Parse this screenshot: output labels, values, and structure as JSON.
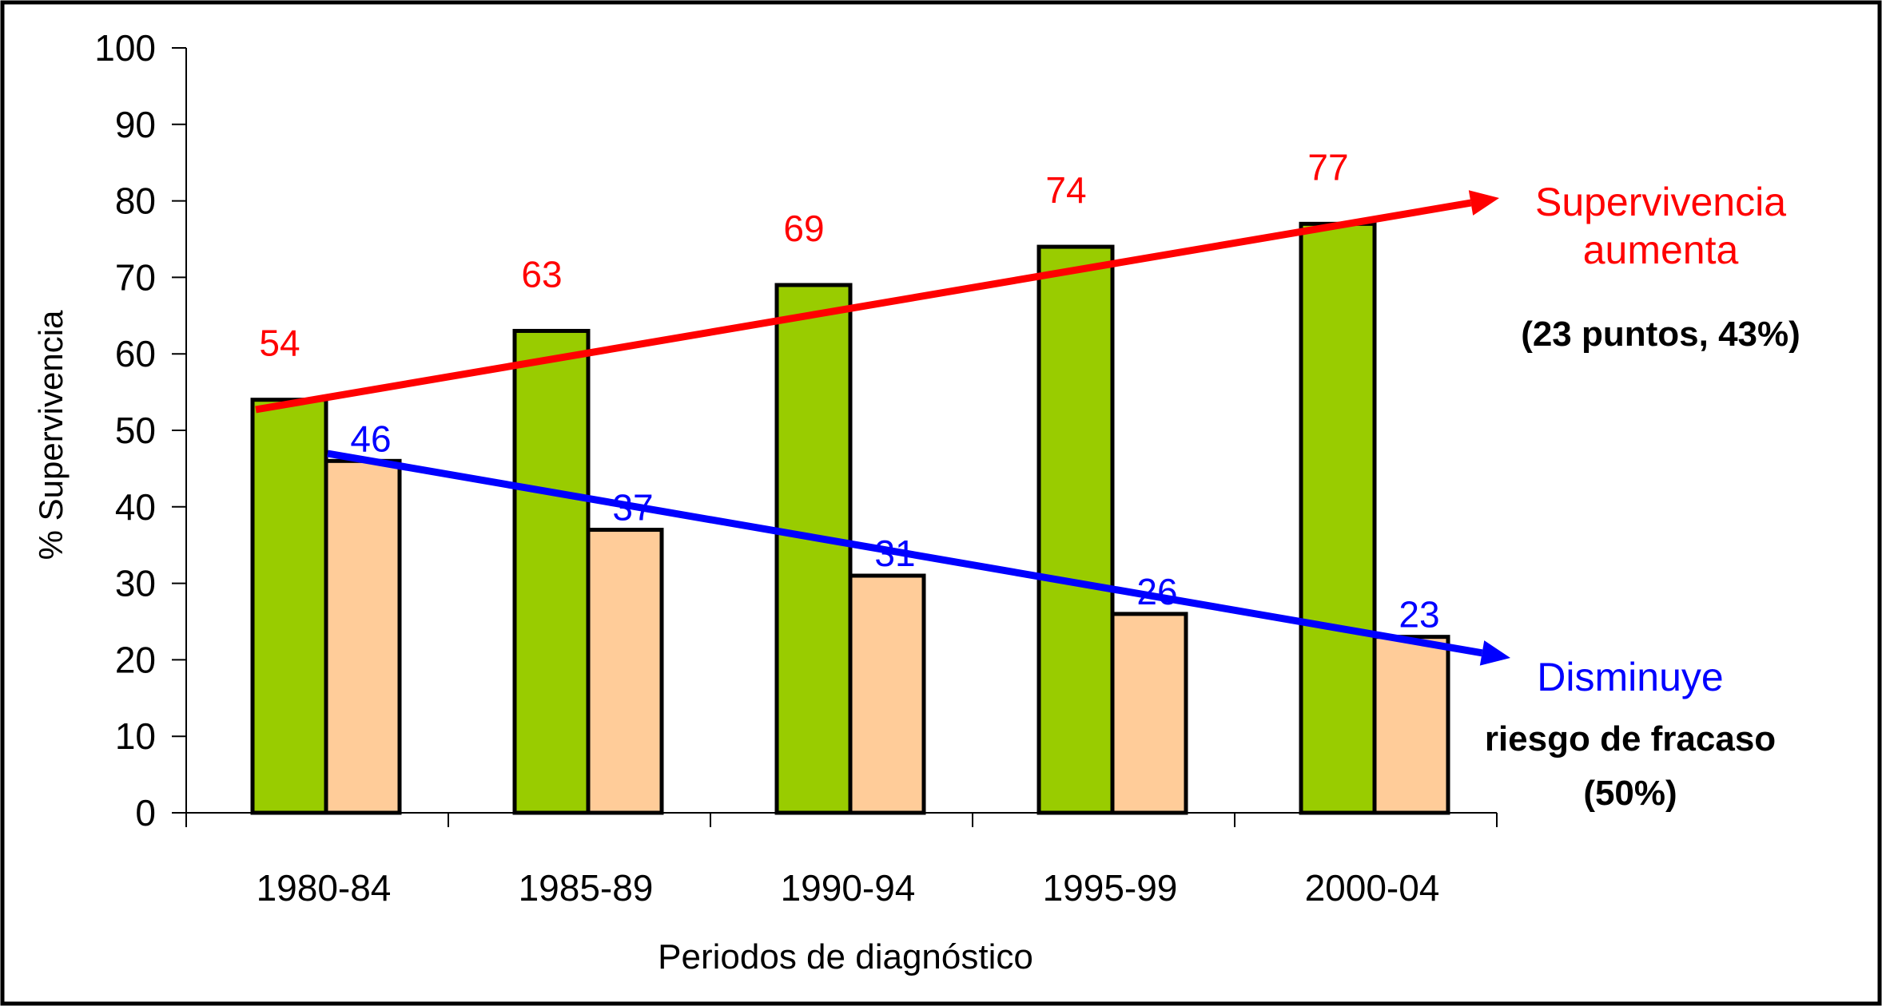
{
  "chart_data": {
    "type": "bar",
    "title": "",
    "xlabel": "Periodos de diagnóstico",
    "ylabel": "% Supervivencia",
    "ylim": [
      0,
      100
    ],
    "yticks": [
      "0",
      "10",
      "20",
      "30",
      "40",
      "50",
      "60",
      "70",
      "80",
      "90",
      "100"
    ],
    "categories": [
      "1980-84",
      "1985-89",
      "1990-94",
      "1995-99",
      "2000-04"
    ],
    "series": [
      {
        "name": "Supervivencia",
        "values": [
          54,
          63,
          69,
          74,
          77
        ],
        "color": "#99cc00",
        "label_color": "#ff0000"
      },
      {
        "name": "Fracaso",
        "values": [
          46,
          37,
          31,
          26,
          23
        ],
        "color": "#ffcc99",
        "label_color": "#0000ff"
      }
    ],
    "grid": false,
    "annotations": {
      "up": {
        "line1": "Supervivencia",
        "line2": "aumenta",
        "detail": "(23 puntos, 43%)",
        "color": "#ff0000"
      },
      "down": {
        "line1": "Disminuye",
        "line2": "riesgo de fracaso",
        "detail": "(50%)",
        "color": "#0000ff"
      }
    }
  }
}
